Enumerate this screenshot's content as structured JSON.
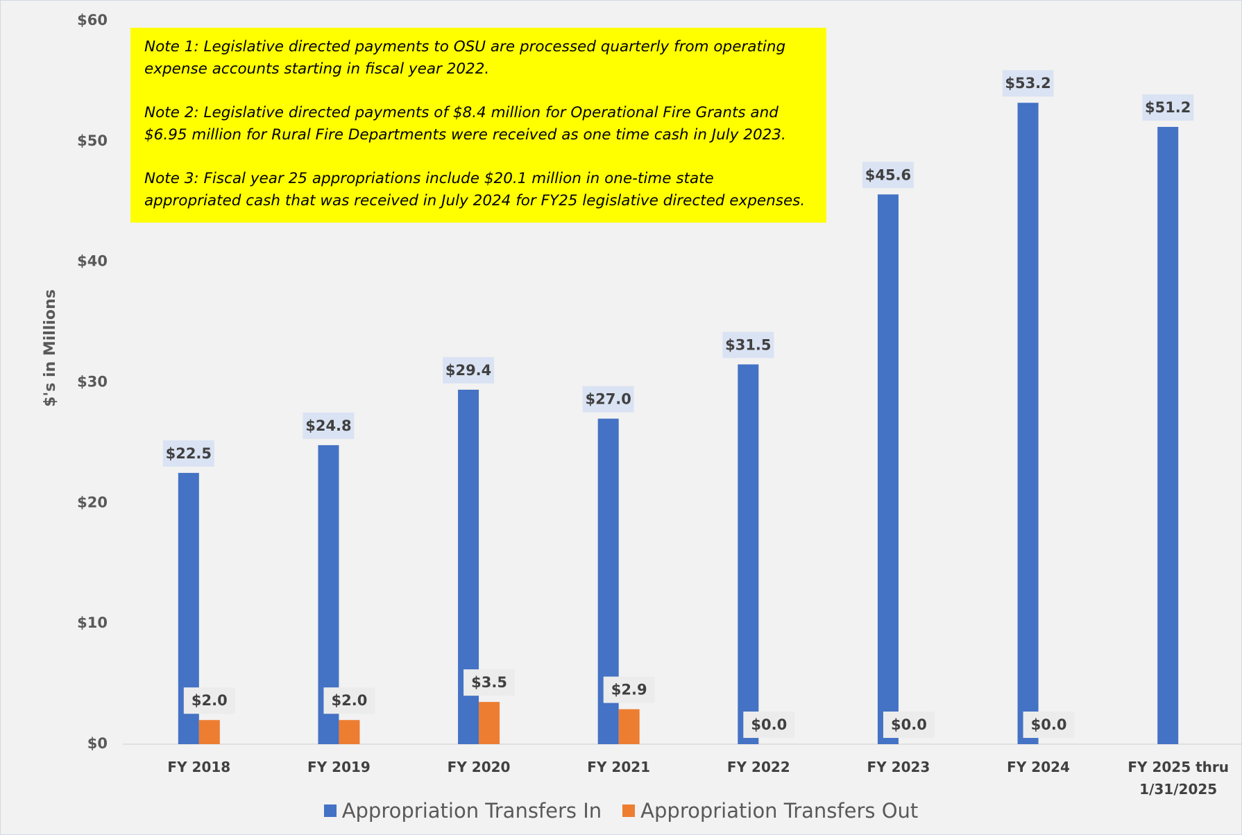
{
  "chart_data": {
    "type": "bar",
    "y_label": "$'s in Millions",
    "notes": [
      "Note 1: Legislative directed payments to OSU are processed quarterly from operating expense accounts starting in fiscal year 2022.",
      "Note 2: Legislative directed payments of $8.4 million for Operational Fire Grants and $6.95 million for Rural Fire Departments were received as one time cash in July 2023.",
      "Note 3: Fiscal year 25 appropriations include $20.1 million in one-time state appropriated cash that was received in July 2024 for FY25 legislative directed expenses."
    ],
    "categories": [
      "FY 2018",
      "FY 2019",
      "FY 2020",
      "FY 2021",
      "FY 2022",
      "FY 2023",
      "FY 2024",
      "FY 2025 thru 1/31/2025"
    ],
    "series": [
      {
        "name": "Appropriation Transfers In",
        "color": "#4472c4",
        "values": [
          22.5,
          24.8,
          29.4,
          27,
          31.5,
          45.6,
          53.2,
          51.2
        ],
        "value_labels": [
          "$22.5",
          "$24.8",
          "$29.4",
          "$27.0",
          "$31.5",
          "$45.6",
          "$53.2",
          "$51.2"
        ]
      },
      {
        "name": "Appropriation Transfers Out",
        "color": "#ed7d31",
        "values": [
          2,
          2,
          3.5,
          2.9,
          0,
          0,
          0,
          null
        ],
        "value_labels": [
          "$2.0",
          "$2.0",
          "$3.5",
          "$2.9",
          "$0.0",
          "$0.0",
          "$0.0",
          null
        ]
      }
    ],
    "ylim": [
      0,
      60
    ],
    "yticks": [
      {
        "value": 0,
        "label": "$0"
      },
      {
        "value": 10,
        "label": "$10"
      },
      {
        "value": 20,
        "label": "$20"
      },
      {
        "value": 30,
        "label": "$30"
      },
      {
        "value": 40,
        "label": "$40"
      },
      {
        "value": 50,
        "label": "$50"
      },
      {
        "value": 60,
        "label": "$60"
      }
    ],
    "legend": "bottom"
  }
}
